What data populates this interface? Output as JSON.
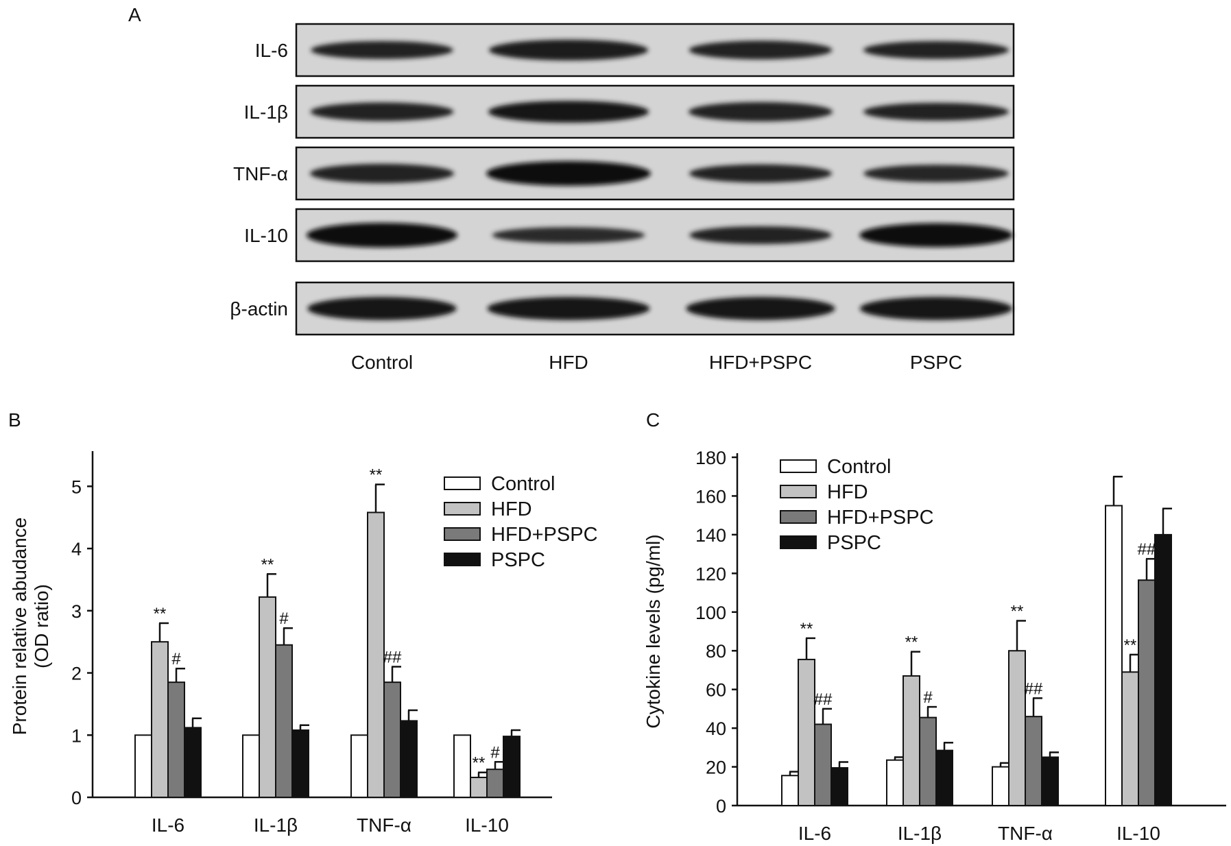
{
  "panels": {
    "a": {
      "letter": "A"
    },
    "b": {
      "letter": "B"
    },
    "c": {
      "letter": "C"
    }
  },
  "blot": {
    "rows": [
      "IL-6",
      "IL-1β",
      "TNF-α",
      "IL-10",
      "β-actin"
    ],
    "lanes": [
      "Control",
      "HFD",
      "HFD+PSPC",
      "PSPC"
    ],
    "band_intensity": [
      [
        0.62,
        0.78,
        0.66,
        0.62
      ],
      [
        0.66,
        0.84,
        0.7,
        0.62
      ],
      [
        0.7,
        1.0,
        0.64,
        0.6
      ],
      [
        1.0,
        0.52,
        0.62,
        0.96
      ],
      [
        0.92,
        0.92,
        0.92,
        0.92
      ]
    ]
  },
  "chart_data": [
    {
      "type": "bar",
      "panel": "B",
      "ylabel_lines": [
        "Protein relative abudance",
        "(OD ratio)"
      ],
      "ylim": [
        0,
        5.5
      ],
      "yticks": [
        0,
        1,
        2,
        3,
        4,
        5
      ],
      "categories": [
        "IL-6",
        "IL-1β",
        "TNF-α",
        "IL-10"
      ],
      "legend_position": "top-right",
      "series": [
        {
          "name": "Control",
          "color": "#ffffff",
          "values": [
            1.0,
            1.0,
            1.0,
            1.0
          ],
          "errors": [
            0,
            0,
            0,
            0
          ]
        },
        {
          "name": "HFD",
          "color": "#c2c2c2",
          "values": [
            2.5,
            3.22,
            4.58,
            0.32
          ],
          "errors": [
            0.3,
            0.37,
            0.45,
            0.08
          ]
        },
        {
          "name": "HFD+PSPC",
          "color": "#7a7a7a",
          "values": [
            1.85,
            2.45,
            1.85,
            0.45
          ],
          "errors": [
            0.22,
            0.27,
            0.25,
            0.12
          ]
        },
        {
          "name": "PSPC",
          "color": "#111111",
          "values": [
            1.12,
            1.08,
            1.23,
            0.98
          ],
          "errors": [
            0.15,
            0.08,
            0.17,
            0.1
          ]
        }
      ],
      "annotations": [
        {
          "category": 0,
          "series": 1,
          "text": "**"
        },
        {
          "category": 0,
          "series": 2,
          "text": "#"
        },
        {
          "category": 1,
          "series": 1,
          "text": "**"
        },
        {
          "category": 1,
          "series": 2,
          "text": "#"
        },
        {
          "category": 2,
          "series": 1,
          "text": "**"
        },
        {
          "category": 2,
          "series": 2,
          "text": "##"
        },
        {
          "category": 3,
          "series": 1,
          "text": "**"
        },
        {
          "category": 3,
          "series": 2,
          "text": "#"
        }
      ]
    },
    {
      "type": "bar",
      "panel": "C",
      "ylabel_lines": [
        "Cytokine levels (pg/ml)"
      ],
      "ylim": [
        0,
        180
      ],
      "yticks": [
        0,
        20,
        40,
        60,
        80,
        100,
        120,
        140,
        160,
        180
      ],
      "categories": [
        "IL-6",
        "IL-1β",
        "TNF-α",
        "IL-10"
      ],
      "legend_position": "top-left",
      "series": [
        {
          "name": "Control",
          "color": "#ffffff",
          "values": [
            15.5,
            23.5,
            20,
            155
          ],
          "errors": [
            2,
            1.5,
            2,
            15
          ]
        },
        {
          "name": "HFD",
          "color": "#c2c2c2",
          "values": [
            75.5,
            67,
            80,
            69
          ],
          "errors": [
            11,
            12.5,
            15.5,
            9
          ]
        },
        {
          "name": "HFD+PSPC",
          "color": "#7a7a7a",
          "values": [
            42,
            45.5,
            46,
            116.5
          ],
          "errors": [
            8,
            5.5,
            9.5,
            11
          ]
        },
        {
          "name": "PSPC",
          "color": "#111111",
          "values": [
            19.5,
            28.5,
            25,
            140
          ],
          "errors": [
            3,
            4,
            2.5,
            13.5
          ]
        }
      ],
      "annotations": [
        {
          "category": 0,
          "series": 1,
          "text": "**"
        },
        {
          "category": 0,
          "series": 2,
          "text": "##"
        },
        {
          "category": 1,
          "series": 1,
          "text": "**"
        },
        {
          "category": 1,
          "series": 2,
          "text": "#"
        },
        {
          "category": 2,
          "series": 1,
          "text": "**"
        },
        {
          "category": 2,
          "series": 2,
          "text": "##"
        },
        {
          "category": 3,
          "series": 1,
          "text": "**"
        },
        {
          "category": 3,
          "series": 2,
          "text": "##"
        }
      ]
    }
  ]
}
